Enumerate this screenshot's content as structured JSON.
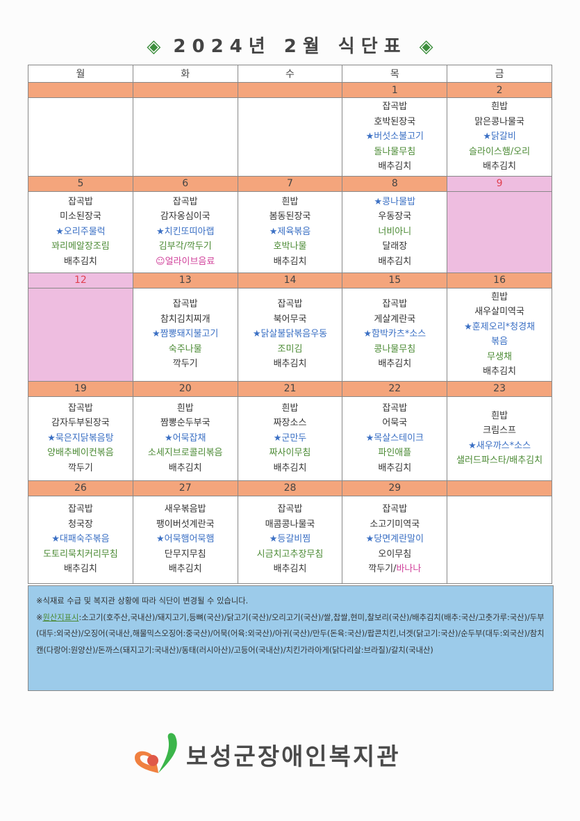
{
  "title": {
    "left_ornament": "◈",
    "text": "2024년 2월 식단표",
    "right_ornament": "◈"
  },
  "weekdays": [
    "월",
    "화",
    "수",
    "목",
    "금"
  ],
  "colors": {
    "date_bar": "#f4a57c",
    "holiday": "#eebde0",
    "notes_bg": "#9ccbea",
    "blue": "#3a6fc4",
    "green": "#4b8a34",
    "pink": "#d0409a"
  },
  "weeks": [
    {
      "days": [
        {
          "date": "",
          "menu": []
        },
        {
          "date": "",
          "menu": []
        },
        {
          "date": "",
          "menu": []
        },
        {
          "date": "1",
          "menu": [
            {
              "parts": [
                {
                  "text": "잡곡밥",
                  "c": "k"
                }
              ]
            },
            {
              "parts": [
                {
                  "text": "호박된장국",
                  "c": "k"
                }
              ]
            },
            {
              "parts": [
                {
                  "text": "★버섯소불고기",
                  "c": "b"
                }
              ]
            },
            {
              "parts": [
                {
                  "text": "돌나물무침",
                  "c": "g"
                }
              ]
            },
            {
              "parts": [
                {
                  "text": "배추김치",
                  "c": "k"
                }
              ]
            }
          ]
        },
        {
          "date": "2",
          "menu": [
            {
              "parts": [
                {
                  "text": "흰밥",
                  "c": "k"
                }
              ]
            },
            {
              "parts": [
                {
                  "text": "맑은콩나물국",
                  "c": "k"
                }
              ]
            },
            {
              "parts": [
                {
                  "text": "★닭갈비",
                  "c": "b"
                }
              ]
            },
            {
              "parts": [
                {
                  "text": "슬라이스햄/오리",
                  "c": "g"
                }
              ]
            },
            {
              "parts": [
                {
                  "text": "배추김치",
                  "c": "k"
                }
              ]
            }
          ]
        }
      ]
    },
    {
      "days": [
        {
          "date": "5",
          "menu": [
            {
              "parts": [
                {
                  "text": "잡곡밥",
                  "c": "k"
                }
              ]
            },
            {
              "parts": [
                {
                  "text": "미소된장국",
                  "c": "k"
                }
              ]
            },
            {
              "parts": [
                {
                  "text": "★오리주물럭",
                  "c": "b"
                }
              ]
            },
            {
              "parts": [
                {
                  "text": "꽈리메알장조림",
                  "c": "g"
                }
              ]
            },
            {
              "parts": [
                {
                  "text": "배추김치",
                  "c": "k"
                }
              ]
            }
          ]
        },
        {
          "date": "6",
          "menu": [
            {
              "parts": [
                {
                  "text": "잡곡밥",
                  "c": "k"
                }
              ]
            },
            {
              "parts": [
                {
                  "text": "감자옹심이국",
                  "c": "k"
                }
              ]
            },
            {
              "parts": [
                {
                  "text": "★치킨또띠아랩",
                  "c": "b"
                }
              ]
            },
            {
              "parts": [
                {
                  "text": "김부각/깍두기",
                  "c": "g"
                }
              ]
            },
            {
              "parts": [
                {
                  "text": "☺얼라이브음료",
                  "c": "p"
                }
              ]
            }
          ]
        },
        {
          "date": "7",
          "menu": [
            {
              "parts": [
                {
                  "text": "흰밥",
                  "c": "k"
                }
              ]
            },
            {
              "parts": [
                {
                  "text": "봄동된장국",
                  "c": "k"
                }
              ]
            },
            {
              "parts": [
                {
                  "text": "★제육볶음",
                  "c": "b"
                }
              ]
            },
            {
              "parts": [
                {
                  "text": "호박나물",
                  "c": "g"
                }
              ]
            },
            {
              "parts": [
                {
                  "text": "배추김치",
                  "c": "k"
                }
              ]
            }
          ]
        },
        {
          "date": "8",
          "menu": [
            {
              "parts": [
                {
                  "text": "★콩나물밥",
                  "c": "b"
                }
              ]
            },
            {
              "parts": [
                {
                  "text": "우동장국",
                  "c": "k"
                }
              ]
            },
            {
              "parts": [
                {
                  "text": "너비아니",
                  "c": "g"
                }
              ]
            },
            {
              "parts": [
                {
                  "text": "달래장",
                  "c": "k"
                }
              ]
            },
            {
              "parts": [
                {
                  "text": "배추김치",
                  "c": "k"
                }
              ]
            }
          ]
        },
        {
          "date": "9",
          "holiday": true,
          "menu": []
        }
      ]
    },
    {
      "days": [
        {
          "date": "12",
          "holiday": true,
          "menu": []
        },
        {
          "date": "13",
          "menu": [
            {
              "parts": [
                {
                  "text": "잡곡밥",
                  "c": "k"
                }
              ]
            },
            {
              "parts": [
                {
                  "text": "참치김치찌개",
                  "c": "k"
                }
              ]
            },
            {
              "parts": [
                {
                  "text": "★짬뽕돼지불고기",
                  "c": "b"
                }
              ]
            },
            {
              "parts": [
                {
                  "text": "숙주나물",
                  "c": "g"
                }
              ]
            },
            {
              "parts": [
                {
                  "text": "깍두기",
                  "c": "k"
                }
              ]
            }
          ]
        },
        {
          "date": "14",
          "menu": [
            {
              "parts": [
                {
                  "text": "잡곡밥",
                  "c": "k"
                }
              ]
            },
            {
              "parts": [
                {
                  "text": "북어무국",
                  "c": "k"
                }
              ]
            },
            {
              "parts": [
                {
                  "text": "★닭살불닭볶음우동",
                  "c": "b"
                }
              ]
            },
            {
              "parts": [
                {
                  "text": "조미김",
                  "c": "g"
                }
              ]
            },
            {
              "parts": [
                {
                  "text": "배추김치",
                  "c": "k"
                }
              ]
            }
          ]
        },
        {
          "date": "15",
          "menu": [
            {
              "parts": [
                {
                  "text": "잡곡밥",
                  "c": "k"
                }
              ]
            },
            {
              "parts": [
                {
                  "text": "게살계란국",
                  "c": "k"
                }
              ]
            },
            {
              "parts": [
                {
                  "text": "★함박카츠*소스",
                  "c": "b"
                }
              ]
            },
            {
              "parts": [
                {
                  "text": "콩나물무침",
                  "c": "g"
                }
              ]
            },
            {
              "parts": [
                {
                  "text": "배추김치",
                  "c": "k"
                }
              ]
            }
          ]
        },
        {
          "date": "16",
          "menu": [
            {
              "parts": [
                {
                  "text": "흰밥",
                  "c": "k"
                }
              ]
            },
            {
              "parts": [
                {
                  "text": "새우살미역국",
                  "c": "k"
                }
              ]
            },
            {
              "parts": [
                {
                  "text": "★훈제오리*청경채",
                  "c": "b"
                }
              ]
            },
            {
              "parts": [
                {
                  "text": "볶음",
                  "c": "b"
                }
              ]
            },
            {
              "parts": [
                {
                  "text": "무생채",
                  "c": "g"
                }
              ]
            },
            {
              "parts": [
                {
                  "text": "배추김치",
                  "c": "k"
                }
              ]
            }
          ]
        }
      ]
    },
    {
      "days": [
        {
          "date": "19",
          "menu": [
            {
              "parts": [
                {
                  "text": "잡곡밥",
                  "c": "k"
                }
              ]
            },
            {
              "parts": [
                {
                  "text": "감자두부된장국",
                  "c": "k"
                }
              ]
            },
            {
              "parts": [
                {
                  "text": "★묵은지닭볶음탕",
                  "c": "b"
                }
              ]
            },
            {
              "parts": [
                {
                  "text": "양배추베이컨볶음",
                  "c": "g"
                }
              ]
            },
            {
              "parts": [
                {
                  "text": "깍두기",
                  "c": "k"
                }
              ]
            }
          ]
        },
        {
          "date": "20",
          "menu": [
            {
              "parts": [
                {
                  "text": "흰밥",
                  "c": "k"
                }
              ]
            },
            {
              "parts": [
                {
                  "text": "짬뽕순두부국",
                  "c": "k"
                }
              ]
            },
            {
              "parts": [
                {
                  "text": "★어묵잡채",
                  "c": "b"
                }
              ]
            },
            {
              "parts": [
                {
                  "text": "소세지브로콜리볶음",
                  "c": "g"
                }
              ]
            },
            {
              "parts": [
                {
                  "text": "배추김치",
                  "c": "k"
                }
              ]
            }
          ]
        },
        {
          "date": "21",
          "menu": [
            {
              "parts": [
                {
                  "text": "흰밥",
                  "c": "k"
                }
              ]
            },
            {
              "parts": [
                {
                  "text": "짜장소스",
                  "c": "k"
                }
              ]
            },
            {
              "parts": [
                {
                  "text": "★군만두",
                  "c": "b"
                }
              ]
            },
            {
              "parts": [
                {
                  "text": "짜사이무침",
                  "c": "g"
                }
              ]
            },
            {
              "parts": [
                {
                  "text": "배추김치",
                  "c": "k"
                }
              ]
            }
          ]
        },
        {
          "date": "22",
          "menu": [
            {
              "parts": [
                {
                  "text": "잡곡밥",
                  "c": "k"
                }
              ]
            },
            {
              "parts": [
                {
                  "text": "어묵국",
                  "c": "k"
                }
              ]
            },
            {
              "parts": [
                {
                  "text": "★목살스테이크",
                  "c": "b"
                }
              ]
            },
            {
              "parts": [
                {
                  "text": "파인애플",
                  "c": "g"
                }
              ]
            },
            {
              "parts": [
                {
                  "text": "배추김치",
                  "c": "k"
                }
              ]
            }
          ]
        },
        {
          "date": "23",
          "menu": [
            {
              "parts": [
                {
                  "text": "흰밥",
                  "c": "k"
                }
              ]
            },
            {
              "parts": [
                {
                  "text": "크림스프",
                  "c": "k"
                }
              ]
            },
            {
              "parts": [
                {
                  "text": "★새우까스*소스",
                  "c": "b"
                }
              ]
            },
            {
              "parts": [
                {
                  "text": "샐러드파스타/배추김치",
                  "c": "g"
                }
              ]
            }
          ]
        }
      ]
    },
    {
      "days": [
        {
          "date": "26",
          "menu": [
            {
              "parts": [
                {
                  "text": "잡곡밥",
                  "c": "k"
                }
              ]
            },
            {
              "parts": [
                {
                  "text": "청국장",
                  "c": "k"
                }
              ]
            },
            {
              "parts": [
                {
                  "text": "★대패숙주볶음",
                  "c": "b"
                }
              ]
            },
            {
              "parts": [
                {
                  "text": "도토리묵치커리무침",
                  "c": "g"
                }
              ]
            },
            {
              "parts": [
                {
                  "text": "배추김치",
                  "c": "k"
                }
              ]
            }
          ]
        },
        {
          "date": "27",
          "menu": [
            {
              "parts": [
                {
                  "text": "새우볶음밥",
                  "c": "k"
                }
              ]
            },
            {
              "parts": [
                {
                  "text": "팽이버섯계란국",
                  "c": "k"
                }
              ]
            },
            {
              "parts": [
                {
                  "text": "★어묵햄어묵햄",
                  "c": "b"
                }
              ]
            },
            {
              "parts": [
                {
                  "text": "단무지무침",
                  "c": "k"
                }
              ]
            },
            {
              "parts": [
                {
                  "text": "배추김치",
                  "c": "k"
                }
              ]
            }
          ]
        },
        {
          "date": "28",
          "menu": [
            {
              "parts": [
                {
                  "text": "잡곡밥",
                  "c": "k"
                }
              ]
            },
            {
              "parts": [
                {
                  "text": "매콤콩나물국",
                  "c": "k"
                }
              ]
            },
            {
              "parts": [
                {
                  "text": "★등갈비찜",
                  "c": "b"
                }
              ]
            },
            {
              "parts": [
                {
                  "text": "시금치고추장무침",
                  "c": "g"
                }
              ]
            },
            {
              "parts": [
                {
                  "text": "배추김치",
                  "c": "k"
                }
              ]
            }
          ]
        },
        {
          "date": "29",
          "menu": [
            {
              "parts": [
                {
                  "text": "잡곡밥",
                  "c": "k"
                }
              ]
            },
            {
              "parts": [
                {
                  "text": "소고기미역국",
                  "c": "k"
                }
              ]
            },
            {
              "parts": [
                {
                  "text": "★당면계란말이",
                  "c": "b"
                }
              ]
            },
            {
              "parts": [
                {
                  "text": "오이무침",
                  "c": "k"
                }
              ]
            },
            {
              "parts": [
                {
                  "text": "깍두기/",
                  "c": "k"
                },
                {
                  "text": "바나나",
                  "c": "p"
                }
              ]
            }
          ]
        },
        {
          "date": "",
          "menu": []
        }
      ]
    }
  ],
  "notes": {
    "line1": "※식재료 수급 및 복지관 상황에 따라 식단이 변경될 수 있습니다.",
    "prefix": "※",
    "label": "원산지표시",
    "origin": ":소고기(호주산,국내산)/돼지고기,등뼈(국산)/닭고기(국산)/오리고기(국산)/쌀,찹쌀,현미,찰보리(국산)/배추김치(배추:국산/고춧가루:국산)/두부(대두:외국산)/오징어(국내산,해물믹스오징어:중국산)/어묵(어육:외국산)/아귀(국산)/만두(돈육:국산)/팝콘치킨,너겟(닭고기:국산)/순두부(대두:외국산)/참치캔(다랑어:원양산)/돈까스(돼지고기:국내산)/동태(러시아산)/고등어(국내산)/치킨가라아게(닭다리살:브라질)/갈치(국내산)"
  },
  "logo": {
    "text": "보성군장애인복지관",
    "icon": "heart-logo-icon"
  }
}
